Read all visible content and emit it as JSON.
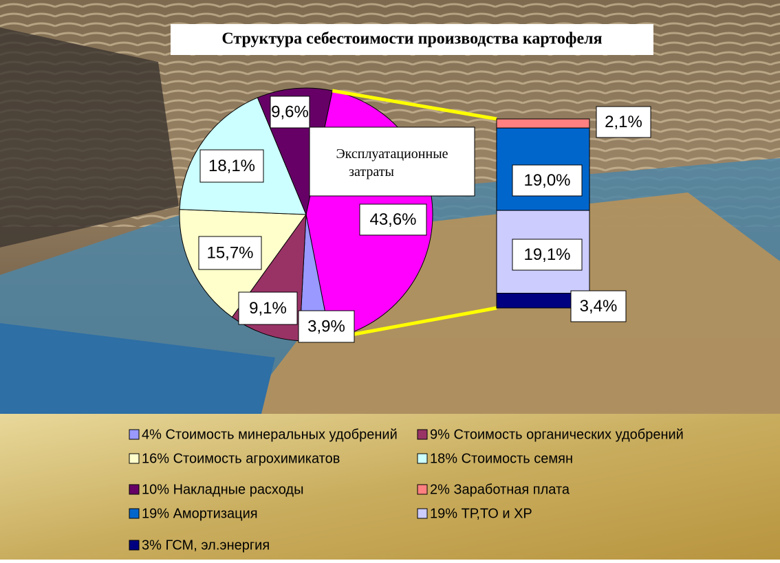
{
  "chart_data": {
    "type": "pie",
    "title": "Структура себестоимости производства картофеля",
    "categories": [
      "4% Стоимость минеральных удобрений",
      "9% Стоимость органических удобрений",
      "16% Стоимость агрохимикатов",
      "18% Стоимость семян",
      "10% Накладные расходы",
      "Эксплуатационные затраты"
    ],
    "values": [
      3.9,
      9.1,
      15.7,
      18.1,
      9.6,
      43.6
    ],
    "value_labels": [
      "3,9%",
      "9,1%",
      "15,7%",
      "18,1%",
      "9,6%",
      "43,6%"
    ],
    "colors": [
      "#9999ff",
      "#993366",
      "#ffffcc",
      "#ccffff",
      "#660066",
      "#ff00ff"
    ],
    "bar": {
      "categories": [
        "2% Заработная плата",
        "19% Амортизация",
        "19% ТР,ТО и ХР",
        "3% ГСМ, эл.энергия"
      ],
      "values": [
        2.1,
        19.0,
        19.1,
        3.4
      ],
      "value_labels": [
        "2,1%",
        "19,0%",
        "19,1%",
        "3,4%"
      ],
      "colors": [
        "#ff8080",
        "#0066cc",
        "#ccccff",
        "#000080"
      ]
    }
  }
}
